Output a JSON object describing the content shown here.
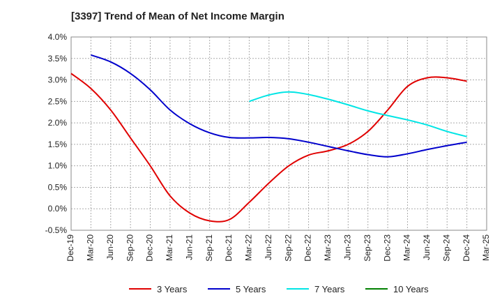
{
  "chart_data": {
    "type": "line",
    "title": "[3397]  Trend of Mean of Net Income Margin",
    "xlabel": "",
    "ylabel": "",
    "categories": [
      "Dec-19",
      "Mar-20",
      "Jun-20",
      "Sep-20",
      "Dec-20",
      "Mar-21",
      "Jun-21",
      "Sep-21",
      "Dec-21",
      "Mar-22",
      "Jun-22",
      "Sep-22",
      "Dec-22",
      "Mar-23",
      "Jun-23",
      "Sep-23",
      "Dec-23",
      "Mar-24",
      "Jun-24",
      "Sep-24",
      "Dec-24",
      "Mar-25"
    ],
    "ylim": [
      -0.5,
      4.0
    ],
    "yticks": [
      -0.5,
      0.0,
      0.5,
      1.0,
      1.5,
      2.0,
      2.5,
      3.0,
      3.5,
      4.0
    ],
    "ytick_labels": [
      "-0.5%",
      "0.0%",
      "0.5%",
      "1.0%",
      "1.5%",
      "2.0%",
      "2.5%",
      "3.0%",
      "3.5%",
      "4.0%"
    ],
    "grid": true,
    "legend_position": "bottom",
    "series": [
      {
        "name": "3 Years",
        "color": "#e00000",
        "values": [
          3.15,
          2.8,
          2.3,
          1.65,
          1.0,
          0.3,
          -0.1,
          -0.28,
          -0.25,
          0.15,
          0.6,
          1.0,
          1.25,
          1.35,
          1.5,
          1.8,
          2.3,
          2.85,
          3.05,
          3.05,
          2.97,
          null
        ]
      },
      {
        "name": "5 Years",
        "color": "#0000cc",
        "values": [
          null,
          3.58,
          3.42,
          3.15,
          2.77,
          2.3,
          1.98,
          1.77,
          1.66,
          1.65,
          1.66,
          1.63,
          1.55,
          1.45,
          1.35,
          1.26,
          1.21,
          1.28,
          1.38,
          1.47,
          1.55,
          null
        ]
      },
      {
        "name": "7 Years",
        "color": "#00e5e5",
        "values": [
          null,
          null,
          null,
          null,
          null,
          null,
          null,
          null,
          null,
          2.5,
          2.65,
          2.72,
          2.66,
          2.55,
          2.42,
          2.28,
          2.17,
          2.07,
          1.95,
          1.8,
          1.68,
          null
        ]
      },
      {
        "name": "10 Years",
        "color": "#008000",
        "values": [
          null,
          null,
          null,
          null,
          null,
          null,
          null,
          null,
          null,
          null,
          null,
          null,
          null,
          null,
          null,
          null,
          null,
          null,
          null,
          null,
          null,
          null
        ]
      }
    ]
  }
}
